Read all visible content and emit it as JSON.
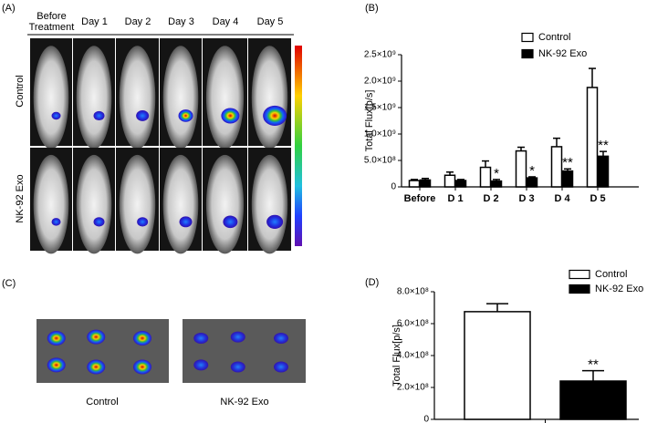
{
  "panel_a": {
    "label": "(A)",
    "columns": [
      "Before Treatment",
      "Day 1",
      "Day 2",
      "Day 3",
      "Day 4",
      "Day 5"
    ],
    "rows": [
      "Control",
      "NK-92 Exo"
    ]
  },
  "panel_c": {
    "label": "(C)",
    "groups": [
      "Control",
      "NK-92 Exo"
    ]
  },
  "chart_data": [
    {
      "type": "bar",
      "panel": "(B)",
      "y_label": "Total Flux[p/s]",
      "categories": [
        "Before",
        "D 1",
        "D 2",
        "D 3",
        "D 4",
        "D 5"
      ],
      "series": [
        {
          "name": "Control",
          "color": "#ffffff",
          "values": [
            120000000,
            220000000,
            370000000,
            680000000,
            760000000,
            1880000000
          ],
          "errors": [
            20000000,
            60000000,
            120000000,
            70000000,
            160000000,
            360000000
          ]
        },
        {
          "name": "NK-92 Exo",
          "color": "#000000",
          "values": [
            130000000,
            120000000,
            110000000,
            170000000,
            300000000,
            580000000
          ],
          "errors": [
            30000000,
            20000000,
            30000000,
            20000000,
            40000000,
            90000000
          ],
          "significance": [
            null,
            null,
            "*",
            "*",
            "**",
            "**"
          ]
        }
      ],
      "ylim": [
        0,
        2500000000
      ],
      "yticks": [
        0,
        {
          "value": 500000000,
          "label": "5.0×10⁸"
        },
        {
          "value": 1000000000,
          "label": "1.0×10⁹"
        },
        {
          "value": 1500000000,
          "label": "1.5×10⁹"
        },
        {
          "value": 2000000000,
          "label": "2.0×10⁹"
        },
        {
          "value": 2500000000,
          "label": "2.5×10⁹"
        }
      ],
      "legend": "top-right"
    },
    {
      "type": "bar",
      "panel": "(D)",
      "y_label": "Total Flux[p/s]",
      "series": [
        {
          "name": "Control",
          "color": "#ffffff",
          "values": [
            675000000
          ],
          "errors": [
            50000000
          ]
        },
        {
          "name": "NK-92 Exo",
          "color": "#000000",
          "values": [
            240000000
          ],
          "errors": [
            65000000
          ],
          "significance": [
            "**"
          ]
        }
      ],
      "ylim": [
        0,
        800000000
      ],
      "yticks": [
        0,
        {
          "value": 200000000,
          "label": "2.0×10⁸"
        },
        {
          "value": 400000000,
          "label": "4.0×10⁸"
        },
        {
          "value": 600000000,
          "label": "6.0×10⁸"
        },
        {
          "value": 800000000,
          "label": "8.0×10⁸"
        }
      ],
      "legend": "top-right"
    }
  ]
}
